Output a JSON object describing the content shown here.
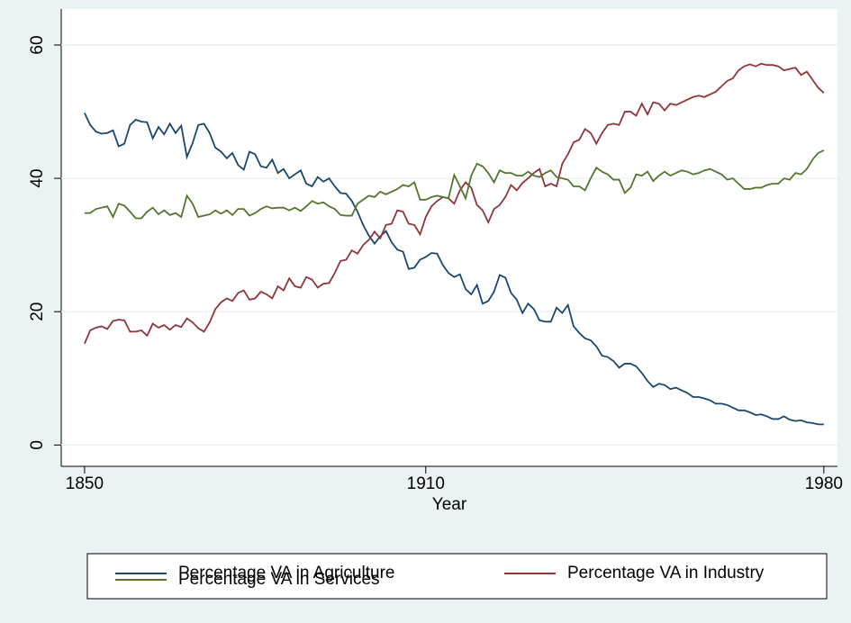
{
  "chart_data": {
    "type": "line",
    "xlabel": "Year",
    "x": [
      1850,
      1851,
      1852,
      1853,
      1854,
      1855,
      1856,
      1857,
      1858,
      1859,
      1860,
      1861,
      1862,
      1863,
      1864,
      1865,
      1866,
      1867,
      1868,
      1869,
      1870,
      1871,
      1872,
      1873,
      1874,
      1875,
      1876,
      1877,
      1878,
      1879,
      1880,
      1881,
      1882,
      1883,
      1884,
      1885,
      1886,
      1887,
      1888,
      1889,
      1890,
      1891,
      1892,
      1893,
      1894,
      1895,
      1896,
      1897,
      1898,
      1899,
      1900,
      1901,
      1902,
      1903,
      1904,
      1905,
      1906,
      1907,
      1908,
      1909,
      1910,
      1911,
      1912,
      1913,
      1914,
      1915,
      1916,
      1917,
      1918,
      1919,
      1920,
      1921,
      1922,
      1923,
      1924,
      1925,
      1926,
      1927,
      1928,
      1929,
      1930,
      1931,
      1932,
      1933,
      1934,
      1935,
      1936,
      1937,
      1938,
      1939,
      1940,
      1941,
      1942,
      1943,
      1944,
      1945,
      1946,
      1947,
      1948,
      1949,
      1950,
      1951,
      1952,
      1953,
      1954,
      1955,
      1956,
      1957,
      1958,
      1959,
      1960,
      1961,
      1962,
      1963,
      1964,
      1965,
      1966,
      1967,
      1968,
      1969,
      1970,
      1971,
      1972,
      1973,
      1974,
      1975,
      1976,
      1977,
      1978,
      1979,
      1980
    ],
    "series": [
      {
        "name": "Percentage VA in Agriculture",
        "color": "#1a476f",
        "values": [
          49.8,
          48,
          47,
          46.7,
          46.8,
          47.2,
          44.8,
          45.2,
          48,
          48.8,
          48.5,
          48.4,
          46,
          47.7,
          46.6,
          48.2,
          46.8,
          47.9,
          43.2,
          45.3,
          48,
          48.2,
          46.8,
          44.6,
          44,
          43,
          43.8,
          42,
          41.3,
          44,
          43.6,
          41.8,
          41.6,
          42.8,
          40.8,
          41.4,
          40,
          40.6,
          41.2,
          39.2,
          38.8,
          40.2,
          39.5,
          40,
          38.8,
          37.8,
          37.7,
          36.6,
          35,
          33,
          31.4,
          30.2,
          31.3,
          32.1,
          30.4,
          29.3,
          29,
          26.4,
          26.6,
          27.8,
          28.2,
          28.8,
          28.7,
          27,
          25.8,
          25.2,
          25.6,
          23.4,
          22.6,
          24,
          21.2,
          21.6,
          23,
          25.5,
          25.1,
          22.8,
          21.8,
          19.8,
          21.2,
          20.4,
          18.7,
          18.5,
          18.5,
          20.6,
          19.8,
          21,
          17.8,
          16.8,
          16,
          15.7,
          14.8,
          13.4,
          13.2,
          12.6,
          11.6,
          12.2,
          12.2,
          11.8,
          10.8,
          9.6,
          8.7,
          9.2,
          9,
          8.4,
          8.6,
          8.2,
          7.8,
          7.2,
          7.2,
          7,
          6.7,
          6.2,
          6.2,
          6,
          5.6,
          5.2,
          5.2,
          4.9,
          4.5,
          4.6,
          4.3,
          3.9,
          3.9,
          4.3,
          3.8,
          3.6,
          3.7,
          3.4,
          3.3,
          3.1,
          3.1
        ]
      },
      {
        "name": "Percentage VA in Industry",
        "color": "#90353b",
        "values": [
          15.2,
          17.2,
          17.6,
          17.8,
          17.4,
          18.6,
          18.8,
          18.7,
          17,
          17,
          17.2,
          16.4,
          18.2,
          17.6,
          18,
          17.3,
          18,
          17.7,
          19,
          18.4,
          17.5,
          17,
          18.4,
          20.4,
          21.4,
          22,
          21.6,
          22.8,
          23.2,
          21.8,
          22,
          23,
          22.6,
          22,
          23.8,
          23.2,
          25,
          23.8,
          23.6,
          25.2,
          24.8,
          23.6,
          24.2,
          24.3,
          25.8,
          27.6,
          27.8,
          29.2,
          28.7,
          30,
          30.8,
          32,
          31,
          33,
          33.2,
          35.2,
          35,
          33.2,
          33,
          31.6,
          34.2,
          35.8,
          36.6,
          37.2,
          37,
          36.2,
          38.2,
          39.4,
          38.6,
          36,
          35.2,
          33.4,
          35.4,
          36,
          37.2,
          39,
          38.2,
          39.3,
          40,
          40.8,
          41.4,
          38.8,
          39.2,
          38.8,
          42.2,
          43.6,
          45.4,
          45.8,
          47.4,
          46.8,
          45.2,
          46.8,
          48,
          48.2,
          48,
          50,
          50,
          49.4,
          51.2,
          49.6,
          51.4,
          51.2,
          50.2,
          51.2,
          51,
          51.4,
          51.8,
          52.2,
          52.4,
          52.2,
          52.6,
          53,
          53.8,
          54.6,
          55,
          56.2,
          56.8,
          57.1,
          56.8,
          57.2,
          57,
          57,
          56.8,
          56.2,
          56.4,
          56.6,
          55.5,
          56,
          54.8,
          53.6,
          52.8
        ]
      },
      {
        "name": "Percentage VA in Services",
        "color": "#55752f",
        "values": [
          34.8,
          34.8,
          35.4,
          35.6,
          35.8,
          34.2,
          36.2,
          35.9,
          35,
          34,
          34,
          35,
          35.6,
          34.6,
          35.2,
          34.5,
          34.8,
          34.2,
          37.4,
          36.2,
          34.2,
          34.4,
          34.6,
          35.2,
          34.7,
          35.2,
          34.5,
          35.4,
          35.4,
          34.4,
          34.8,
          35.4,
          35.8,
          35.5,
          35.6,
          35.6,
          35.2,
          35.6,
          35.1,
          35.8,
          36.6,
          36.2,
          36.4,
          35.8,
          35.4,
          34.5,
          34.4,
          34.4,
          36.2,
          36.8,
          37.4,
          37.2,
          38,
          37.6,
          38,
          38.4,
          39,
          38.8,
          39.4,
          36.8,
          36.8,
          37.2,
          37.4,
          37.2,
          37,
          40.5,
          38.8,
          37,
          40.4,
          42.2,
          41.8,
          40.8,
          39.4,
          41.2,
          40.8,
          40.8,
          40.4,
          40.4,
          41,
          40.4,
          40.2,
          40.8,
          41.2,
          40.2,
          40,
          39.8,
          38.8,
          38.8,
          38.2,
          40,
          41.6,
          41,
          40.6,
          39.8,
          39.8,
          37.8,
          38.6,
          40.6,
          40.4,
          41,
          39.6,
          40.4,
          41,
          40.4,
          40.8,
          41.2,
          41,
          40.6,
          40.8,
          41.2,
          41.4,
          41,
          40.6,
          39.8,
          40,
          39.2,
          38.4,
          38.4,
          38.6,
          38.6,
          39,
          39.2,
          39.2,
          40,
          39.8,
          40.8,
          40.6,
          41.4,
          42.8,
          43.8,
          44.2
        ]
      }
    ],
    "xlim": [
      1845.9,
      1982.4
    ],
    "xticks": [
      1850,
      1910,
      1980
    ],
    "ylim": [
      -3.2,
      65.4
    ],
    "yticks": [
      0,
      20,
      40,
      60
    ],
    "grid": true,
    "legend": "bottom"
  }
}
